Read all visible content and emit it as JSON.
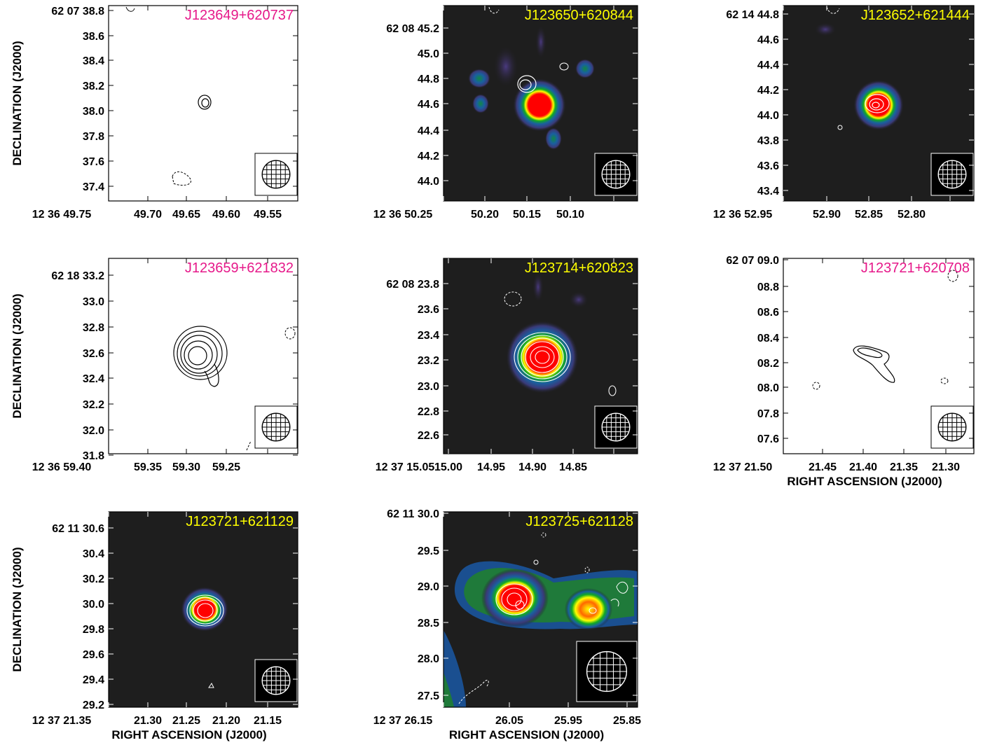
{
  "figure": {
    "ylabel": "DECLINATION (J2000)",
    "xlabel": "RIGHT ASCENSION (J2000)"
  },
  "chart_data": [
    {
      "type": "contour",
      "title": "J123649+620737",
      "title_color": "#e6198a",
      "background": "white",
      "x_ticks": [
        "12 36 49.75",
        "49.70",
        "49.65",
        "49.60",
        "49.55"
      ],
      "y_ticks": [
        "62 07 38.8",
        "38.6",
        "38.4",
        "38.2",
        "38.0",
        "37.8",
        "37.6",
        "37.4"
      ],
      "show_xlabel": false,
      "show_ylabel": true
    },
    {
      "type": "heatmap",
      "title": "J123650+620844",
      "title_color": "#ffff00",
      "background": "dark",
      "x_ticks": [
        "12 36 50.25",
        "50.20",
        "50.15",
        "50.10"
      ],
      "y_ticks": [
        "62 08 45.2",
        "45.0",
        "44.8",
        "44.6",
        "44.4",
        "44.2",
        "44.0"
      ],
      "show_xlabel": false,
      "show_ylabel": false
    },
    {
      "type": "heatmap",
      "title": "J123652+621444",
      "title_color": "#ffff00",
      "background": "dark",
      "x_ticks": [
        "12 36 52.95",
        "52.90",
        "52.85",
        "52.80"
      ],
      "y_ticks": [
        "62 14 44.8",
        "44.6",
        "44.4",
        "44.2",
        "44.0",
        "43.8",
        "43.6",
        "43.4"
      ],
      "show_xlabel": false,
      "show_ylabel": false
    },
    {
      "type": "contour",
      "title": "J123659+621832",
      "title_color": "#e6198a",
      "background": "white",
      "x_ticks": [
        "12 36 59.40",
        "59.35",
        "59.30",
        "59.25"
      ],
      "y_ticks": [
        "62 18 33.2",
        "33.0",
        "32.8",
        "32.6",
        "32.4",
        "32.2",
        "32.0",
        "31.8"
      ],
      "show_xlabel": false,
      "show_ylabel": true
    },
    {
      "type": "heatmap",
      "title": "J123714+620823",
      "title_color": "#ffff00",
      "background": "dark",
      "x_ticks": [
        "12 37 15.05",
        "15.00",
        "14.95",
        "14.90",
        "14.85"
      ],
      "y_ticks": [
        "62 08 23.8",
        "23.6",
        "23.4",
        "23.2",
        "23.0",
        "22.8",
        "22.6"
      ],
      "show_xlabel": false,
      "show_ylabel": false
    },
    {
      "type": "contour",
      "title": "J123721+620708",
      "title_color": "#e6198a",
      "background": "white",
      "x_ticks": [
        "12 37 21.50",
        "21.45",
        "21.40",
        "21.35",
        "21.30"
      ],
      "y_ticks": [
        "62 07 09.0",
        "08.8",
        "08.6",
        "08.4",
        "08.2",
        "08.0",
        "07.8",
        "07.6"
      ],
      "show_xlabel": true,
      "show_ylabel": false
    },
    {
      "type": "heatmap",
      "title": "J123721+621129",
      "title_color": "#ffff00",
      "background": "dark",
      "x_ticks": [
        "12 37 21.35",
        "21.30",
        "21.25",
        "21.20",
        "21.15"
      ],
      "y_ticks": [
        "62 11 30.6",
        "30.4",
        "30.2",
        "30.0",
        "29.8",
        "29.6",
        "29.4",
        "29.2"
      ],
      "show_xlabel": true,
      "show_ylabel": true
    },
    {
      "type": "heatmap",
      "title": "J123725+621128",
      "title_color": "#ffff00",
      "background": "dark",
      "x_ticks": [
        "12 37 26.15",
        "26.05",
        "25.95",
        "25.85"
      ],
      "y_ticks": [
        "62 11 30.0",
        "29.5",
        "29.0",
        "28.5",
        "28.0",
        "27.5"
      ],
      "show_xlabel": true,
      "show_ylabel": false
    }
  ]
}
